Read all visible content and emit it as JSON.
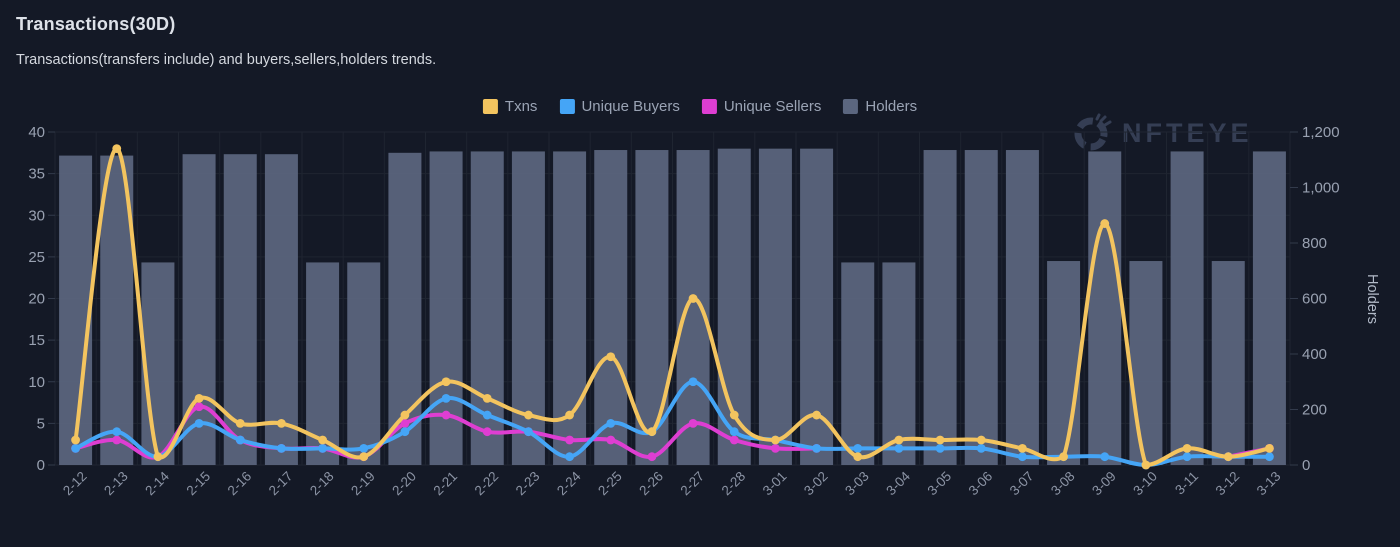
{
  "header": {
    "title": "Transactions(30D)",
    "subtitle": "Transactions(transfers include) and buyers,sellers,holders trends."
  },
  "watermark": {
    "text": "NFTEYE"
  },
  "colors": {
    "background": "#141926",
    "grid": "#1F2531",
    "tick": "#323A4B",
    "axis_text": "#99A1B1",
    "x_axis_text": "#8C94A5",
    "legend_text": "#9AA3B4",
    "title_text": "#DDE1E8",
    "watermark": "#353E54",
    "txns": "#F3C45F",
    "buyers": "#45A5F6",
    "sellers": "#DE3ED2",
    "holders_bar": "#5B667F"
  },
  "chart_data": {
    "type": "combo-bar-line",
    "title": "Transactions(30D)",
    "grid": true,
    "legend_position": "top-center",
    "categories": [
      "2-12",
      "2-13",
      "2-14",
      "2-15",
      "2-16",
      "2-17",
      "2-18",
      "2-19",
      "2-20",
      "2-21",
      "2-22",
      "2-23",
      "2-24",
      "2-25",
      "2-26",
      "2-27",
      "2-28",
      "3-01",
      "3-02",
      "3-03",
      "3-04",
      "3-05",
      "3-06",
      "3-07",
      "3-08",
      "3-09",
      "3-10",
      "3-11",
      "3-12",
      "3-13"
    ],
    "series": [
      {
        "name": "Txns",
        "type": "line",
        "axis": "left",
        "color": "#F3C45F",
        "values": [
          3,
          38,
          1,
          8,
          5,
          5,
          3,
          1,
          6,
          10,
          8,
          6,
          6,
          13,
          4,
          20,
          6,
          3,
          6,
          1,
          3,
          3,
          3,
          2,
          1,
          29,
          0,
          2,
          1,
          2
        ]
      },
      {
        "name": "Unique Buyers",
        "type": "line",
        "axis": "left",
        "color": "#45A5F6",
        "values": [
          2,
          4,
          1,
          5,
          3,
          2,
          2,
          2,
          4,
          8,
          6,
          4,
          1,
          5,
          4,
          10,
          4,
          3,
          2,
          2,
          2,
          2,
          2,
          1,
          1,
          1,
          0,
          1,
          1,
          1
        ]
      },
      {
        "name": "Unique Sellers",
        "type": "line",
        "axis": "left",
        "color": "#DE3ED2",
        "values": [
          2,
          3,
          1,
          7,
          3,
          2,
          2,
          1,
          5,
          6,
          4,
          4,
          3,
          3,
          1,
          5,
          3,
          2,
          2,
          null,
          null,
          null,
          null,
          null,
          null,
          null,
          null,
          null,
          1,
          2
        ]
      },
      {
        "name": "Holders",
        "type": "bar",
        "axis": "right",
        "color": "#5B667F",
        "values": [
          1115,
          1115,
          730,
          1120,
          1120,
          1120,
          730,
          730,
          1125,
          1130,
          1130,
          1130,
          1130,
          1135,
          1135,
          1135,
          1140,
          1140,
          1140,
          730,
          730,
          1135,
          1135,
          1135,
          735,
          1130,
          735,
          1130,
          735,
          1130
        ]
      }
    ],
    "left_axis": {
      "min": 0,
      "max": 40,
      "step": 5,
      "ticks": [
        "0",
        "5",
        "10",
        "15",
        "20",
        "25",
        "30",
        "35",
        "40"
      ]
    },
    "right_axis": {
      "min": 0,
      "max": 1200,
      "step": 200,
      "label": "Holders",
      "ticks": [
        "0",
        "200",
        "400",
        "600",
        "800",
        "1,000",
        "1,200"
      ]
    }
  }
}
